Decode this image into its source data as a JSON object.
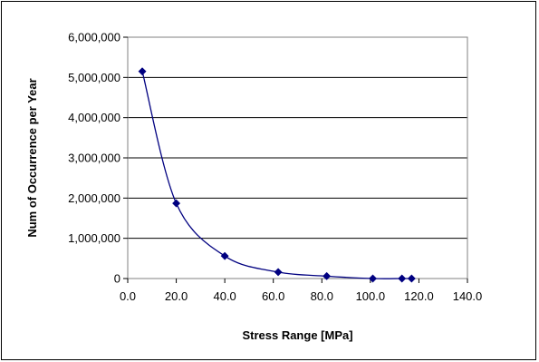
{
  "chart_data": {
    "type": "scatter",
    "title": "",
    "xlabel": "Stress Range [MPa]",
    "ylabel": "Num of Occurrence per Year",
    "xlim": [
      0,
      140
    ],
    "ylim": [
      0,
      6000000
    ],
    "x_ticks": [
      0,
      20,
      40,
      60,
      80,
      100,
      120,
      140
    ],
    "x_tick_labels": [
      "0.0",
      "20.0",
      "40.0",
      "60.0",
      "80.0",
      "100.0",
      "120.0",
      "140.0"
    ],
    "y_ticks": [
      0,
      1000000,
      2000000,
      3000000,
      4000000,
      5000000,
      6000000
    ],
    "y_tick_labels": [
      "0",
      "1,000,000",
      "2,000,000",
      "3,000,000",
      "4,000,000",
      "5,000,000",
      "6,000,000"
    ],
    "grid": "horizontal",
    "legend": "none",
    "series": [
      {
        "marker": "diamond",
        "line": "smooth",
        "color": "#000080",
        "x": [
          6,
          20,
          40,
          62,
          82,
          101,
          113,
          117
        ],
        "y": [
          5150000,
          1870000,
          560000,
          160000,
          60000,
          0,
          0,
          0
        ]
      }
    ]
  }
}
